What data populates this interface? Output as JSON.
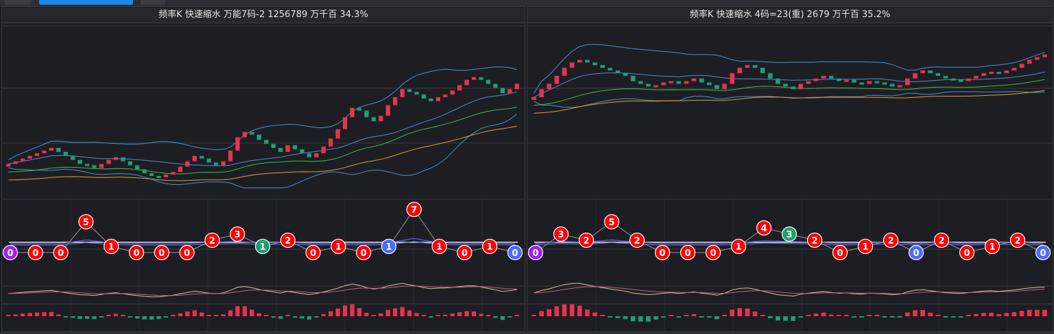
{
  "colors": {
    "up": "#e8334f",
    "down": "#1f9e7a",
    "bb": "#4a8fd6",
    "ma1": "#3bbf4a",
    "ma2": "#e0a030",
    "ball_red": "#ff0000",
    "ball_green": "#1e9e6e",
    "ball_blue": "#4a6cff",
    "ball_purple": "#a020f0",
    "grid": "#44454b",
    "bg": "#1d1e23"
  },
  "icons": [
    "tab-icon",
    "tab-active",
    "tab-add"
  ],
  "panels": [
    {
      "title": "频率K  快速缩水  万能7码-2 1256789  万千百  34.3%",
      "chart_data": {
        "type": "candlestick",
        "close": [
          0.1,
          0.12,
          0.14,
          0.16,
          0.18,
          0.2,
          0.22,
          0.19,
          0.16,
          0.13,
          0.1,
          0.09,
          0.07,
          0.1,
          0.13,
          0.15,
          0.12,
          0.09,
          0.06,
          0.03,
          0.01,
          0.0,
          0.02,
          0.04,
          0.08,
          0.12,
          0.16,
          0.14,
          0.11,
          0.09,
          0.12,
          0.2,
          0.3,
          0.34,
          0.32,
          0.28,
          0.25,
          0.22,
          0.19,
          0.24,
          0.21,
          0.18,
          0.15,
          0.18,
          0.23,
          0.29,
          0.36,
          0.45,
          0.52,
          0.5,
          0.45,
          0.42,
          0.46,
          0.54,
          0.6,
          0.66,
          0.64,
          0.62,
          0.59,
          0.57,
          0.6,
          0.62,
          0.65,
          0.69,
          0.73,
          0.75,
          0.73,
          0.7,
          0.67,
          0.63,
          0.66,
          0.7
        ],
        "balls": [
          {
            "v": "0",
            "level": 0,
            "color": "purple"
          },
          {
            "v": "0",
            "level": 0,
            "color": "red"
          },
          {
            "v": "0",
            "level": 0,
            "color": "red"
          },
          {
            "v": "5",
            "level": 5,
            "color": "red"
          },
          {
            "v": "1",
            "level": 1,
            "color": "red"
          },
          {
            "v": "0",
            "level": 0,
            "color": "red"
          },
          {
            "v": "0",
            "level": 0,
            "color": "red"
          },
          {
            "v": "0",
            "level": 0,
            "color": "red"
          },
          {
            "v": "2",
            "level": 2,
            "color": "red"
          },
          {
            "v": "3",
            "level": 3,
            "color": "red"
          },
          {
            "v": "1",
            "level": 1,
            "color": "green"
          },
          {
            "v": "2",
            "level": 2,
            "color": "red"
          },
          {
            "v": "0",
            "level": 0,
            "color": "red"
          },
          {
            "v": "1",
            "level": 1,
            "color": "red"
          },
          {
            "v": "0",
            "level": 0,
            "color": "red"
          },
          {
            "v": "1",
            "level": 1,
            "color": "blue"
          },
          {
            "v": "7",
            "level": 7,
            "color": "red"
          },
          {
            "v": "1",
            "level": 1,
            "color": "red"
          },
          {
            "v": "0",
            "level": 0,
            "color": "red"
          },
          {
            "v": "1",
            "level": 1,
            "color": "red"
          },
          {
            "v": "0",
            "level": 0,
            "color": "blue"
          }
        ]
      }
    },
    {
      "title": "频率K  快速缩水  4码=23(重) 2679  万千百  35.2%",
      "chart_data": {
        "type": "candlestick",
        "close": [
          0.6,
          0.66,
          0.7,
          0.76,
          0.82,
          0.86,
          0.88,
          0.86,
          0.84,
          0.82,
          0.8,
          0.78,
          0.76,
          0.72,
          0.7,
          0.68,
          0.69,
          0.71,
          0.72,
          0.7,
          0.72,
          0.74,
          0.71,
          0.69,
          0.66,
          0.7,
          0.78,
          0.82,
          0.84,
          0.82,
          0.78,
          0.74,
          0.7,
          0.68,
          0.66,
          0.7,
          0.72,
          0.74,
          0.76,
          0.74,
          0.72,
          0.73,
          0.71,
          0.7,
          0.72,
          0.71,
          0.7,
          0.68,
          0.69,
          0.74,
          0.78,
          0.8,
          0.78,
          0.76,
          0.74,
          0.73,
          0.72,
          0.74,
          0.76,
          0.78,
          0.79,
          0.78,
          0.8,
          0.82,
          0.85,
          0.88,
          0.9,
          0.92
        ],
        "balls": [
          {
            "v": "0",
            "level": 0,
            "color": "purple"
          },
          {
            "v": "3",
            "level": 3,
            "color": "red"
          },
          {
            "v": "2",
            "level": 2,
            "color": "red"
          },
          {
            "v": "5",
            "level": 5,
            "color": "red"
          },
          {
            "v": "2",
            "level": 2,
            "color": "red"
          },
          {
            "v": "0",
            "level": 0,
            "color": "red"
          },
          {
            "v": "0",
            "level": 0,
            "color": "red"
          },
          {
            "v": "0",
            "level": 0,
            "color": "red"
          },
          {
            "v": "1",
            "level": 1,
            "color": "red"
          },
          {
            "v": "4",
            "level": 4,
            "color": "red"
          },
          {
            "v": "3",
            "level": 3,
            "color": "green"
          },
          {
            "v": "2",
            "level": 2,
            "color": "red"
          },
          {
            "v": "0",
            "level": 0,
            "color": "red"
          },
          {
            "v": "1",
            "level": 1,
            "color": "red"
          },
          {
            "v": "2",
            "level": 2,
            "color": "red"
          },
          {
            "v": "0",
            "level": 0,
            "color": "blue"
          },
          {
            "v": "2",
            "level": 2,
            "color": "red"
          },
          {
            "v": "0",
            "level": 0,
            "color": "red"
          },
          {
            "v": "1",
            "level": 1,
            "color": "red"
          },
          {
            "v": "2",
            "level": 2,
            "color": "red"
          },
          {
            "v": "0",
            "level": 0,
            "color": "blue"
          }
        ]
      }
    }
  ]
}
